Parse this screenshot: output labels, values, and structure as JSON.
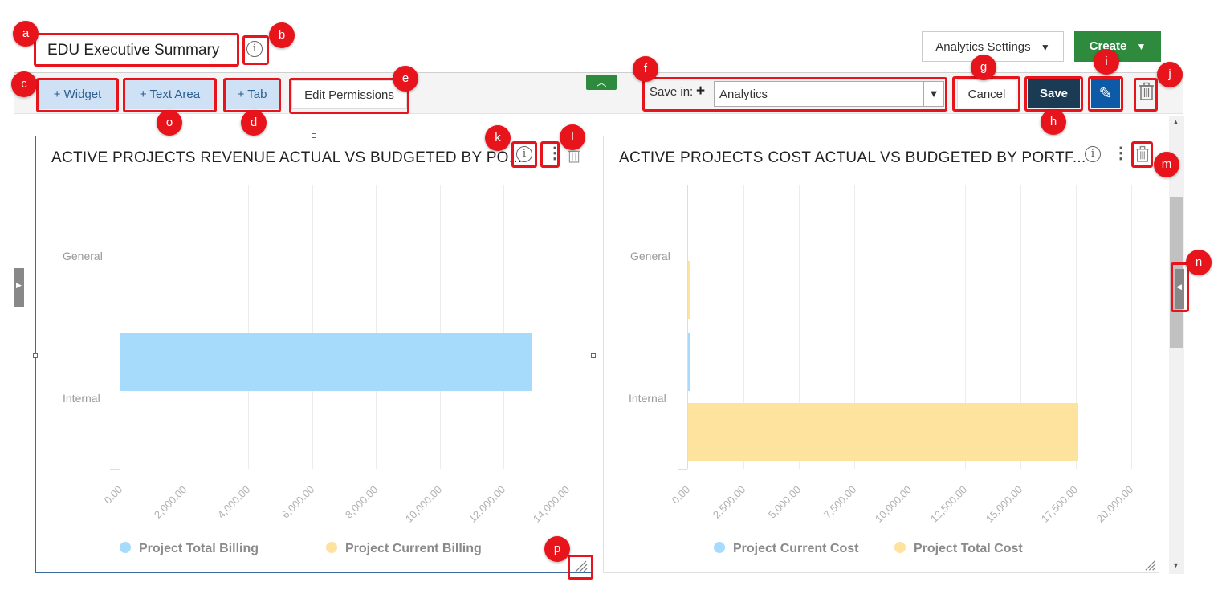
{
  "header": {
    "dashboard_title": "EDU Executive Summary",
    "analytics_settings_label": "Analytics Settings",
    "create_label": "Create"
  },
  "toolbar": {
    "widget_label": "+ Widget",
    "text_area_label": "+ Text Area",
    "tab_label": "+ Tab",
    "edit_permissions_label": "Edit Permissions",
    "save_in_label": "Save in:",
    "save_in_value": "Analytics",
    "cancel_label": "Cancel",
    "save_label": "Save"
  },
  "badges": {
    "a": "a",
    "b": "b",
    "c": "c",
    "d": "d",
    "e": "e",
    "f": "f",
    "g": "g",
    "h": "h",
    "i": "i",
    "j": "j",
    "k": "k",
    "l": "l",
    "m": "m",
    "n": "n",
    "o": "o",
    "p": "p"
  },
  "widgets": [
    {
      "title": "ACTIVE PROJECTS REVENUE ACTUAL VS BUDGETED BY PO...",
      "legend": [
        "Project Total Billing",
        "Project Current Billing"
      ]
    },
    {
      "title": "ACTIVE PROJECTS COST ACTUAL VS BUDGETED BY PORTF...",
      "legend": [
        "Project Current Cost",
        "Project Total Cost"
      ]
    }
  ],
  "colors": {
    "accent_red": "#e8141c",
    "create_green": "#2e8b3e",
    "save_navy": "#1b3b55",
    "edit_blue": "#0d5aa7",
    "series_blue": "#a6dbfb",
    "series_yellow": "#fde39e"
  },
  "icons": [
    "info-icon",
    "chevron-down-icon",
    "chevron-up-icon",
    "plus-icon",
    "pencil-icon",
    "trash-icon",
    "kebab-menu-icon",
    "resize-handle-icon",
    "panel-toggle-icon"
  ],
  "chart_data": [
    {
      "type": "bar",
      "orientation": "horizontal",
      "categories": [
        "General",
        "Internal"
      ],
      "series": [
        {
          "name": "Project Total Billing",
          "values": [
            0,
            12900
          ]
        },
        {
          "name": "Project Current Billing",
          "values": [
            0,
            0
          ]
        }
      ],
      "xlim": [
        0,
        14000
      ],
      "xticks": [
        "0.00",
        "2,000.00",
        "4,000.00",
        "6,000.00",
        "8,000.00",
        "10,000.00",
        "12,000.00",
        "14,000.00"
      ],
      "grid": true,
      "legend_position": "bottom"
    },
    {
      "type": "bar",
      "orientation": "horizontal",
      "categories": [
        "General",
        "Internal"
      ],
      "series": [
        {
          "name": "Project Current Cost",
          "values": [
            0,
            100
          ]
        },
        {
          "name": "Project Total Cost",
          "values": [
            100,
            17600
          ]
        }
      ],
      "xlim": [
        0,
        20000
      ],
      "xticks": [
        "0.00",
        "2,500.00",
        "5,000.00",
        "7,500.00",
        "10,000.00",
        "12,500.00",
        "15,000.00",
        "17,500.00",
        "20,000.00"
      ],
      "grid": true,
      "legend_position": "bottom"
    }
  ]
}
